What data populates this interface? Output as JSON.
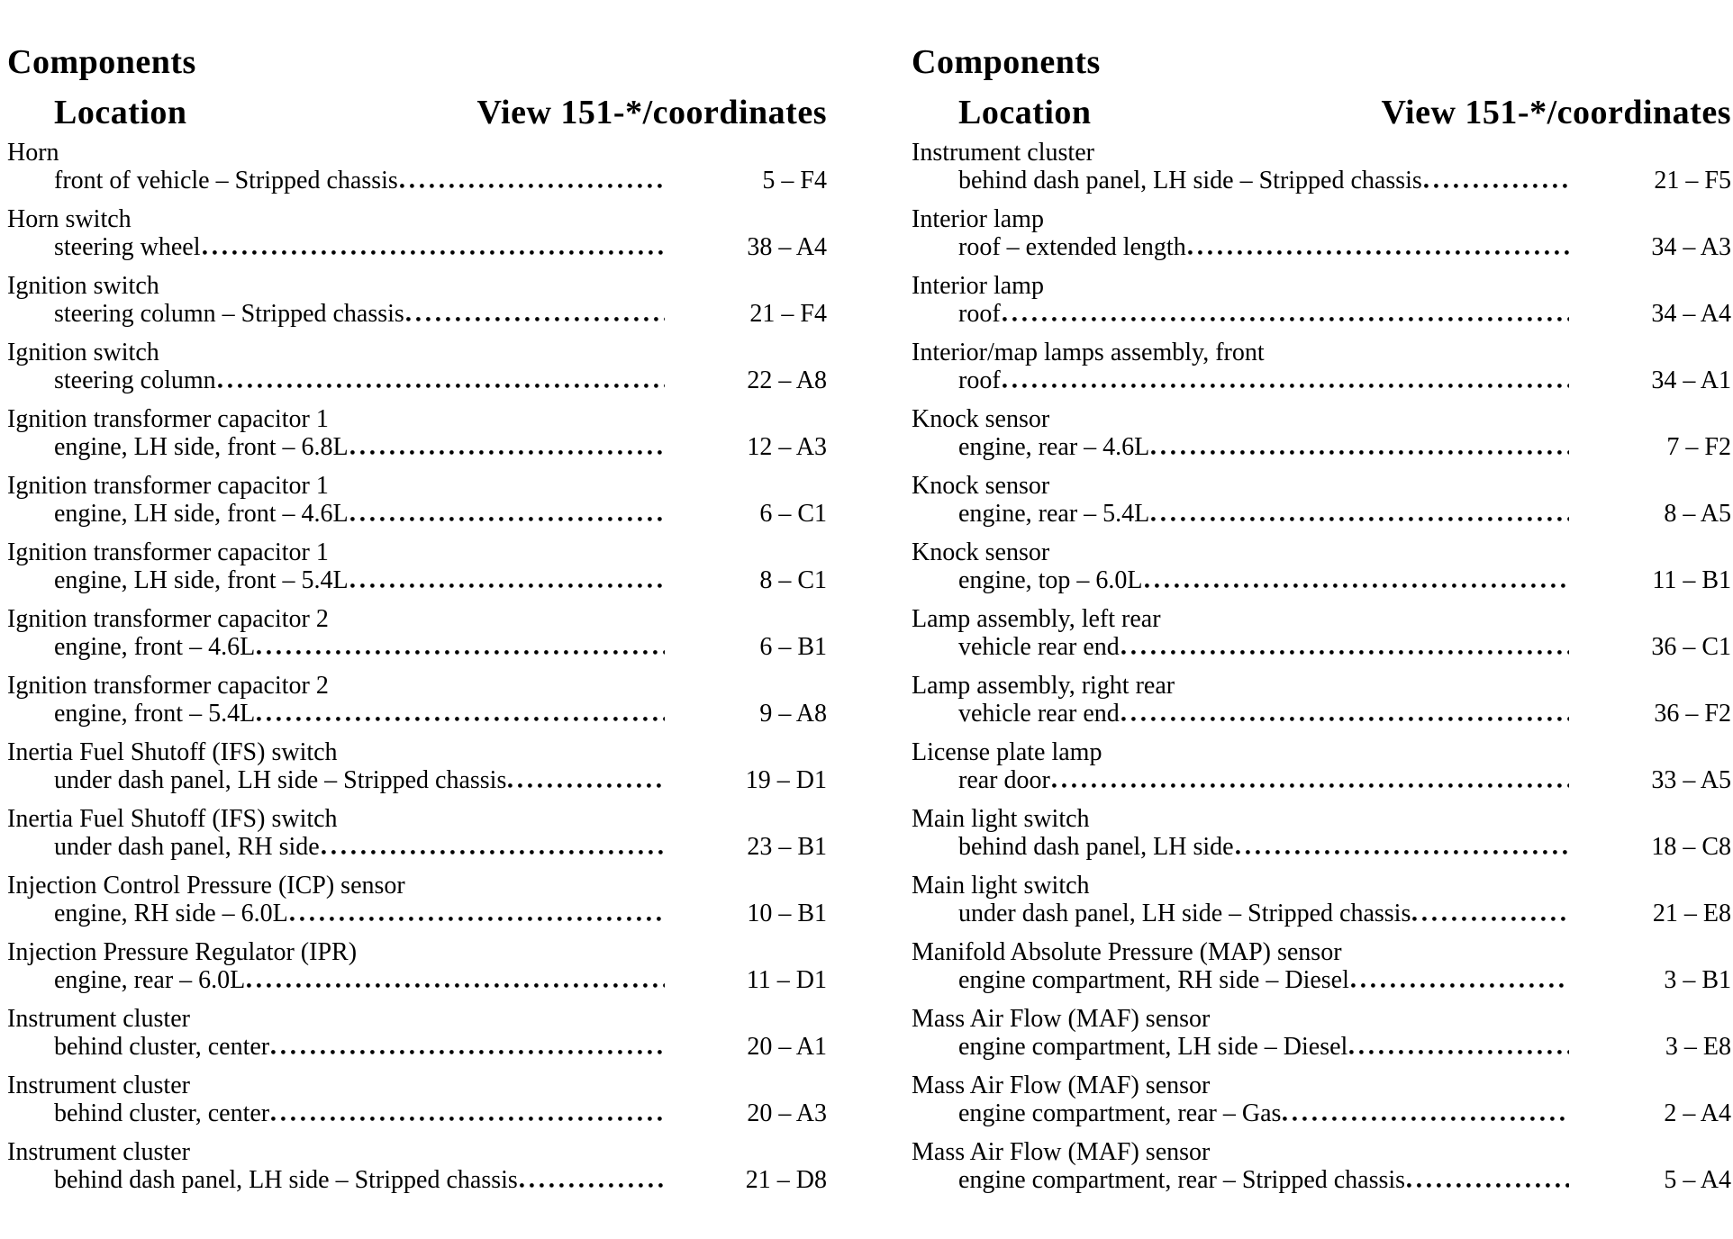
{
  "document": {
    "columns": [
      {
        "header": "Components",
        "location_header": "Location",
        "view_header": "View 151-*/coordinates",
        "entries": [
          {
            "name": "Horn",
            "location": "front of vehicle – Stripped chassis",
            "coordinate": "5 – F4"
          },
          {
            "name": "Horn switch",
            "location": "steering wheel",
            "coordinate": "38 – A4"
          },
          {
            "name": "Ignition switch",
            "location": "steering column – Stripped chassis",
            "coordinate": "21 – F4"
          },
          {
            "name": "Ignition switch",
            "location": "steering column",
            "coordinate": "22 – A8"
          },
          {
            "name": "Ignition transformer capacitor 1",
            "location": "engine, LH side, front – 6.8L",
            "coordinate": "12 – A3"
          },
          {
            "name": "Ignition transformer capacitor 1",
            "location": "engine, LH side, front – 4.6L",
            "coordinate": "6 – C1"
          },
          {
            "name": "Ignition transformer capacitor 1",
            "location": "engine, LH side, front – 5.4L",
            "coordinate": "8 – C1"
          },
          {
            "name": "Ignition transformer capacitor 2",
            "location": "engine, front – 4.6L",
            "coordinate": "6 – B1"
          },
          {
            "name": "Ignition transformer capacitor 2",
            "location": "engine, front – 5.4L",
            "coordinate": "9 – A8"
          },
          {
            "name": "Inertia Fuel Shutoff (IFS) switch",
            "location": "under dash panel, LH side – Stripped chassis",
            "coordinate": "19 – D1"
          },
          {
            "name": "Inertia Fuel Shutoff (IFS) switch",
            "location": "under dash panel, RH side",
            "coordinate": "23 – B1"
          },
          {
            "name": "Injection Control Pressure (ICP) sensor",
            "location": "engine, RH side – 6.0L",
            "coordinate": "10 – B1"
          },
          {
            "name": "Injection Pressure Regulator (IPR)",
            "location": "engine, rear – 6.0L",
            "coordinate": "11 – D1"
          },
          {
            "name": "Instrument cluster",
            "location": "behind cluster, center",
            "coordinate": "20 – A1"
          },
          {
            "name": "Instrument cluster",
            "location": "behind cluster, center",
            "coordinate": "20 – A3"
          },
          {
            "name": "Instrument cluster",
            "location": "behind dash panel, LH side – Stripped chassis",
            "coordinate": "21 – D8"
          }
        ]
      },
      {
        "header": "Components",
        "location_header": "Location",
        "view_header": "View 151-*/coordinates",
        "entries": [
          {
            "name": "Instrument cluster",
            "location": "behind dash panel, LH side – Stripped chassis",
            "coordinate": "21 – F5"
          },
          {
            "name": "Interior lamp",
            "location": "roof – extended length",
            "coordinate": "34 – A3"
          },
          {
            "name": "Interior lamp",
            "location": "roof",
            "coordinate": "34 – A4"
          },
          {
            "name": "Interior/map lamps assembly, front",
            "location": "roof",
            "coordinate": "34 – A1"
          },
          {
            "name": "Knock sensor",
            "location": "engine, rear – 4.6L",
            "coordinate": "7 – F2"
          },
          {
            "name": "Knock sensor",
            "location": "engine, rear – 5.4L",
            "coordinate": "8 – A5"
          },
          {
            "name": "Knock sensor",
            "location": "engine, top – 6.0L",
            "coordinate": "11 – B1"
          },
          {
            "name": "Lamp assembly, left rear",
            "location": "vehicle rear end",
            "coordinate": "36 – C1"
          },
          {
            "name": "Lamp assembly, right rear",
            "location": "vehicle rear end",
            "coordinate": "36 – F2"
          },
          {
            "name": "License plate lamp",
            "location": "rear door",
            "coordinate": "33 – A5"
          },
          {
            "name": "Main light switch",
            "location": "behind dash panel, LH side",
            "coordinate": "18 – C8"
          },
          {
            "name": "Main light switch",
            "location": "under dash panel, LH side – Stripped chassis",
            "coordinate": "21 – E8"
          },
          {
            "name": "Manifold Absolute Pressure (MAP) sensor",
            "location": "engine compartment, RH side – Diesel",
            "coordinate": "3 – B1"
          },
          {
            "name": "Mass Air Flow (MAF) sensor",
            "location": "engine compartment, LH side – Diesel",
            "coordinate": "3 – E8"
          },
          {
            "name": "Mass Air Flow (MAF) sensor",
            "location": "engine compartment, rear – Gas",
            "coordinate": "2 – A4"
          },
          {
            "name": "Mass Air Flow (MAF) sensor",
            "location": "engine compartment, rear – Stripped chassis",
            "coordinate": "5 – A4"
          }
        ]
      }
    ]
  }
}
